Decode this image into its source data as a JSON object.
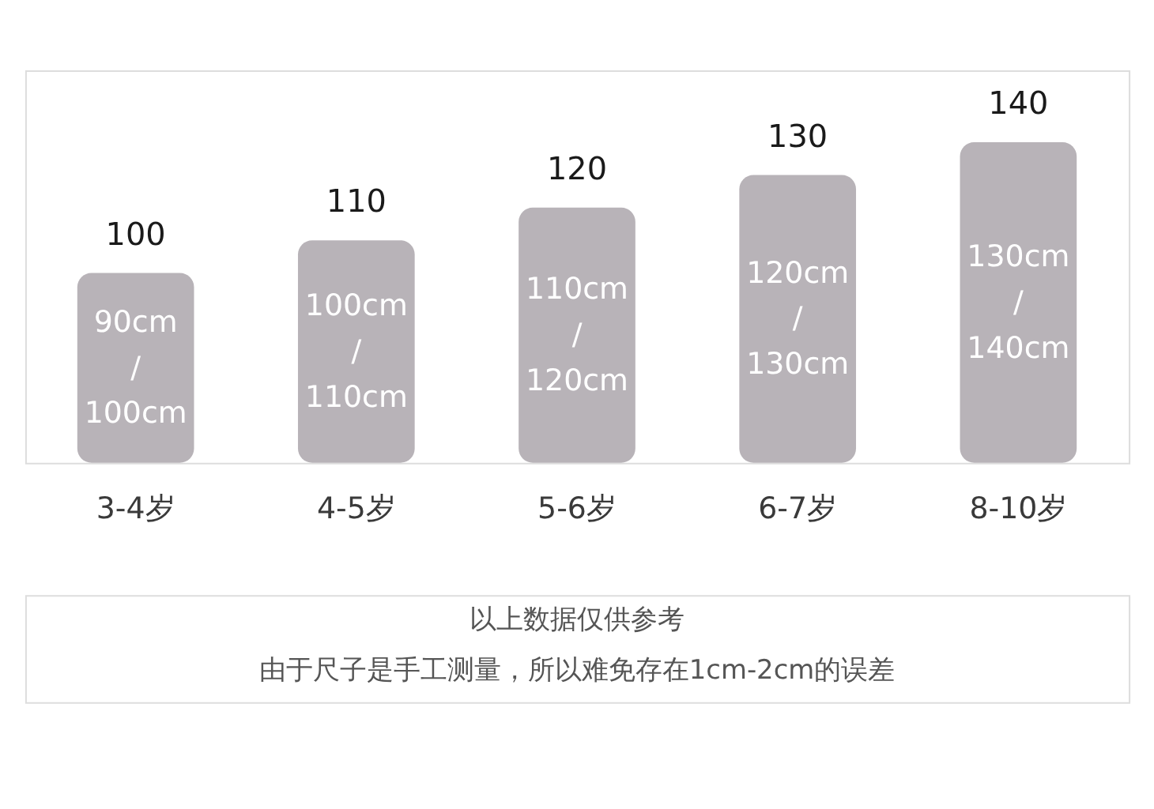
{
  "chart_data": {
    "type": "bar",
    "categories": [
      "3-4岁",
      "4-5岁",
      "5-6岁",
      "6-7岁",
      "8-10岁"
    ],
    "values": [
      100,
      110,
      120,
      130,
      140
    ],
    "color": "#b8b3b8",
    "data_labels": true,
    "ylim": [
      42,
      162
    ],
    "tick_labels": "x",
    "annotations": [
      "90cm\n/\n100cm",
      "100cm\n/\n110cm",
      "110cm\n/\n120cm",
      "120cm\n/\n130cm",
      "130cm\n/\n140cm",
      "以上数据仅供参考",
      "由于尺子是手工测量，所以难免存在1cm-2cm的误差"
    ]
  }
}
